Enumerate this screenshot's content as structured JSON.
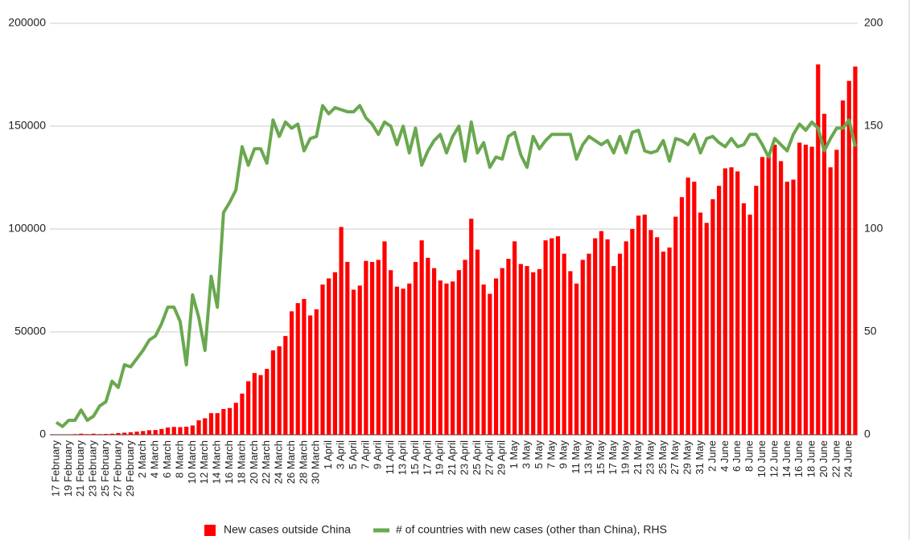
{
  "chart_data": {
    "type": "bar_line",
    "categories": [
      "17 February",
      null,
      "19 February",
      null,
      "21 February",
      null,
      "23 February",
      null,
      "25 February",
      null,
      "27 February",
      null,
      "29 February",
      null,
      "2 March",
      null,
      "4 March",
      null,
      "6 March",
      null,
      "8 March",
      null,
      "10 March",
      null,
      "12 March",
      null,
      "14 March",
      null,
      "16 March",
      null,
      "18 March",
      null,
      "20 March",
      null,
      "22 March",
      null,
      "24 March",
      null,
      "26 March",
      null,
      "28 March",
      null,
      "30 March",
      null,
      "1 April",
      null,
      "3 April",
      null,
      "5 April",
      null,
      "7 April",
      null,
      "9 April",
      null,
      "11 April",
      null,
      "13 April",
      null,
      "15 April",
      null,
      "17 April",
      null,
      "19 April",
      null,
      "21 April",
      null,
      "23 April",
      null,
      "25 April",
      null,
      "27 April",
      null,
      "29 April",
      null,
      "1 May",
      null,
      "3 May",
      null,
      "5 May",
      null,
      "7 May",
      null,
      "9 May",
      null,
      "11 May",
      null,
      "13 May",
      null,
      "15 May",
      null,
      "17 May",
      null,
      "19 May",
      null,
      "21 May",
      null,
      "23 May",
      null,
      "25 May",
      null,
      "27 May",
      null,
      "29 May",
      null,
      "31 May",
      null,
      "2 June",
      null,
      "4 June",
      null,
      "6 June",
      null,
      "8 June",
      null,
      "10 June",
      null,
      "12 June",
      null,
      "14 June",
      null,
      "16 June",
      null,
      "18 June",
      null,
      "20 June",
      null,
      "22 June",
      null,
      "24 June",
      null
    ],
    "series": [
      {
        "name": "New cases outside China",
        "color": "#ff0000",
        "axis": "y",
        "values": [
          100,
          100,
          200,
          300,
          500,
          300,
          500,
          300,
          400,
          500,
          800,
          1000,
          1200,
          1500,
          1800,
          2200,
          2300,
          2800,
          3500,
          3800,
          3700,
          3900,
          4500,
          7000,
          8000,
          10500,
          10500,
          12500,
          13000,
          15500,
          20000,
          26000,
          30000,
          29000,
          32000,
          41000,
          43000,
          48000,
          60000,
          64000,
          66000,
          58000,
          61000,
          73000,
          76000,
          79000,
          101000,
          84000,
          70500,
          72500,
          84500,
          84000,
          85000,
          94000,
          80000,
          72000,
          71000,
          73500,
          84000,
          94500,
          86000,
          81000,
          75000,
          73500,
          74500,
          80000,
          85000,
          105000,
          90000,
          73000,
          68500,
          76000,
          81000,
          85500,
          94000,
          83000,
          82000,
          79000,
          80500,
          94500,
          95500,
          96500,
          88000,
          79500,
          73500,
          85000,
          88000,
          95500,
          99000,
          95000,
          82000,
          88000,
          94000,
          100000,
          106500,
          107000,
          99500,
          96000,
          89000,
          91000,
          106000,
          115500,
          125000,
          123000,
          108000,
          103000,
          114500,
          121000,
          129500,
          130000,
          128000,
          112500,
          107000,
          121000,
          135000,
          136000,
          141000,
          133000,
          123000,
          124000,
          142000,
          141000,
          140000,
          180000,
          156000,
          130000,
          138500,
          162500,
          172000,
          179000
        ]
      },
      {
        "name": "# of countries with new cases (other than China), RHS",
        "color": "#6aa84f",
        "axis": "y2",
        "values": [
          6,
          4,
          7,
          7,
          12,
          7,
          9,
          14,
          16,
          26,
          23,
          34,
          33,
          37,
          41,
          46,
          48,
          54,
          62,
          62,
          55,
          34,
          68,
          57,
          41,
          77,
          62,
          108,
          113,
          119,
          140,
          131,
          139,
          139,
          132,
          153,
          145,
          152,
          149,
          151,
          138,
          144,
          145,
          160,
          156,
          159,
          158,
          157,
          157,
          160,
          154,
          151,
          146,
          152,
          150,
          141,
          150,
          137,
          149,
          131,
          138,
          143,
          146,
          137,
          145,
          150,
          133,
          152,
          137,
          142,
          130,
          135,
          134,
          145,
          147,
          136,
          130,
          145,
          139,
          143,
          146,
          146,
          146,
          146,
          134,
          141,
          145,
          143,
          141,
          143,
          137,
          145,
          137,
          147,
          148,
          138,
          137,
          138,
          143,
          133,
          144,
          143,
          141,
          146,
          137,
          144,
          145,
          142,
          140,
          144,
          140,
          141,
          146,
          146,
          141,
          135,
          144,
          141,
          138,
          146,
          151,
          148,
          152,
          149,
          138,
          144,
          149,
          149,
          153,
          140
        ]
      }
    ],
    "ylim": [
      0,
      200000
    ],
    "yticks": [
      0,
      50000,
      100000,
      150000,
      200000
    ],
    "y2lim": [
      0,
      200
    ],
    "y2ticks": [
      0,
      50,
      100,
      150,
      200
    ],
    "grid": true,
    "legend": "bottom"
  }
}
